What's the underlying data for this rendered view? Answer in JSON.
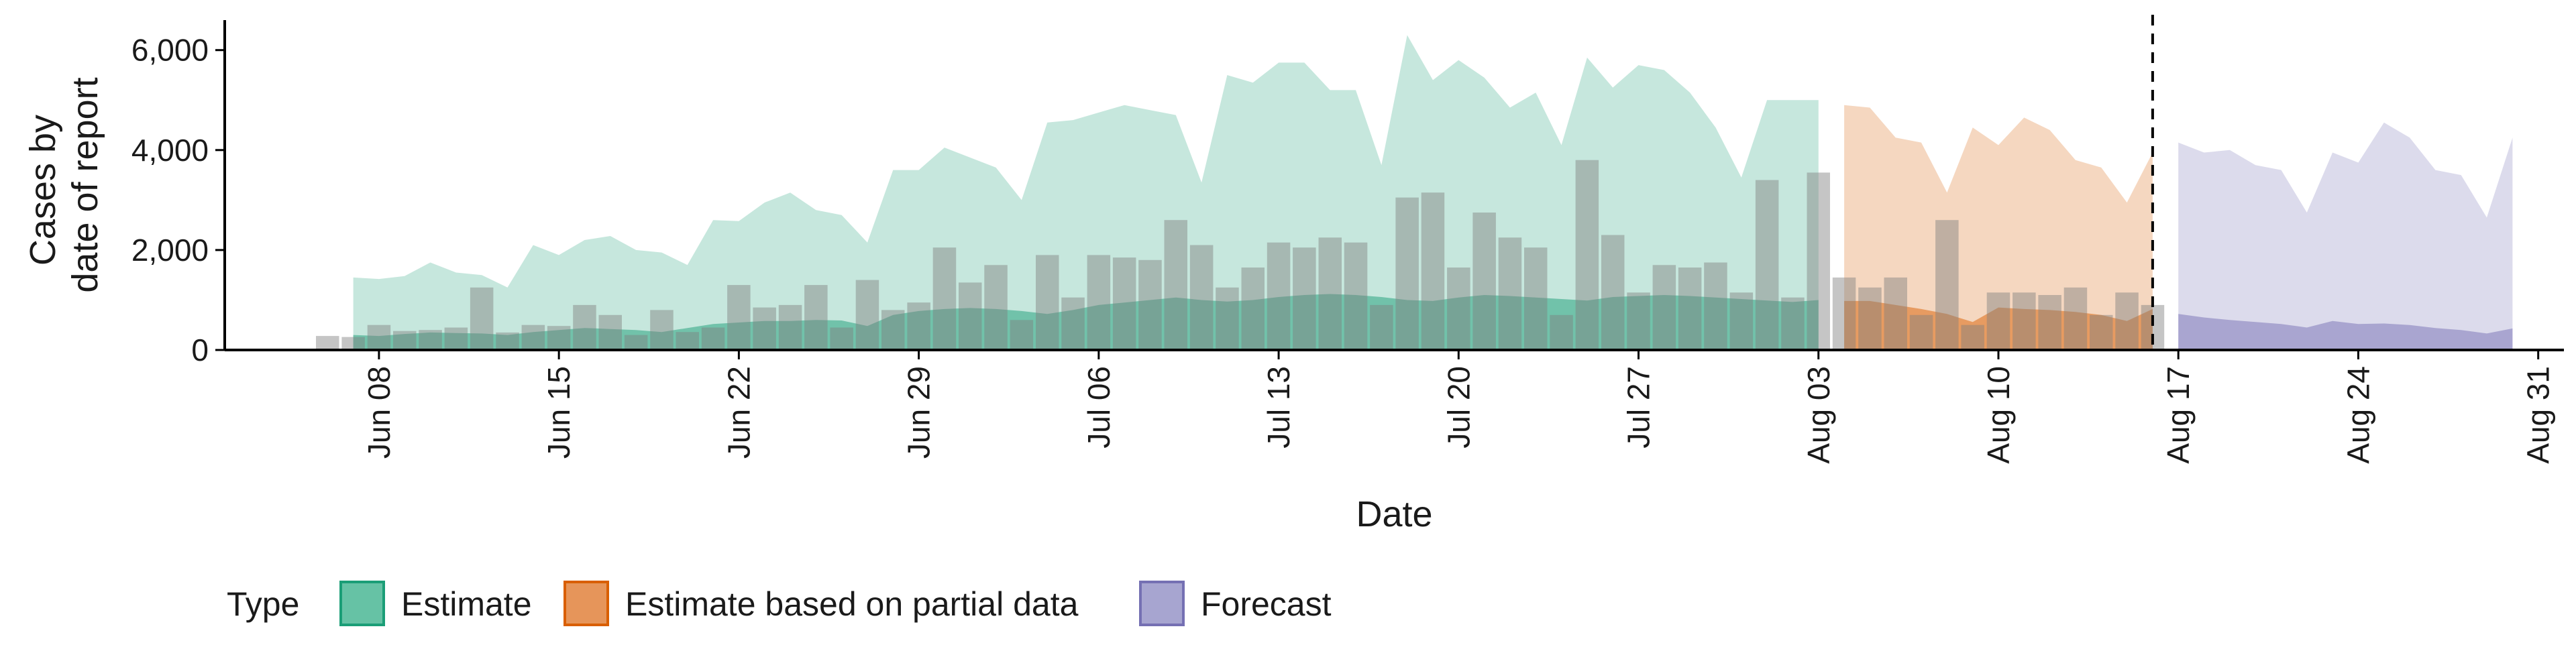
{
  "chart_data": {
    "type": "area",
    "xlabel": "Date",
    "ylabel_lines": [
      "Cases by",
      "date of report"
    ],
    "ylim": [
      0,
      6600
    ],
    "xlim": [
      "2021-06-02",
      "2021-09-01"
    ],
    "y_ticks": [
      0,
      2000,
      4000,
      6000
    ],
    "y_tick_labels": [
      "0",
      "2,000",
      "4,000",
      "6,000"
    ],
    "x_ticks": [
      "2021-06-08",
      "2021-06-15",
      "2021-06-22",
      "2021-06-29",
      "2021-07-06",
      "2021-07-13",
      "2021-07-20",
      "2021-07-27",
      "2021-08-03",
      "2021-08-10",
      "2021-08-17",
      "2021-08-24",
      "2021-08-31"
    ],
    "x_tick_labels": [
      "Jun 08",
      "Jun 15",
      "Jun 22",
      "Jun 29",
      "Jul 06",
      "Jul 13",
      "Jul 20",
      "Jul 27",
      "Aug 03",
      "Aug 10",
      "Aug 17",
      "Aug 24",
      "Aug 31"
    ],
    "vline_date": "2021-08-16",
    "legend": {
      "title": "Type",
      "position": "bottom",
      "entries": [
        {
          "label": "Estimate",
          "fill": "#66c2a5",
          "stroke": "#1b9e77"
        },
        {
          "label": "Estimate based on partial data",
          "fill": "#e6955a",
          "stroke": "#d95f02"
        },
        {
          "label": "Forecast",
          "fill": "#a7a5d0",
          "stroke": "#7570b3"
        }
      ]
    },
    "series": [
      {
        "name": "Estimate",
        "fill": "#1b9e77",
        "x": [
          "2021-06-07",
          "2021-06-08",
          "2021-06-09",
          "2021-06-10",
          "2021-06-11",
          "2021-06-12",
          "2021-06-13",
          "2021-06-14",
          "2021-06-15",
          "2021-06-16",
          "2021-06-17",
          "2021-06-18",
          "2021-06-19",
          "2021-06-20",
          "2021-06-21",
          "2021-06-22",
          "2021-06-23",
          "2021-06-24",
          "2021-06-25",
          "2021-06-26",
          "2021-06-27",
          "2021-06-28",
          "2021-06-29",
          "2021-06-30",
          "2021-07-01",
          "2021-07-02",
          "2021-07-03",
          "2021-07-04",
          "2021-07-05",
          "2021-07-06",
          "2021-07-07",
          "2021-07-08",
          "2021-07-09",
          "2021-07-10",
          "2021-07-11",
          "2021-07-12",
          "2021-07-13",
          "2021-07-14",
          "2021-07-15",
          "2021-07-16",
          "2021-07-17",
          "2021-07-18",
          "2021-07-19",
          "2021-07-20",
          "2021-07-21",
          "2021-07-22",
          "2021-07-23",
          "2021-07-24",
          "2021-07-25",
          "2021-07-26",
          "2021-07-27",
          "2021-07-28",
          "2021-07-29",
          "2021-07-30",
          "2021-07-31",
          "2021-08-01",
          "2021-08-02",
          "2021-08-03"
        ],
        "lower": [
          200,
          190,
          220,
          250,
          240,
          230,
          200,
          260,
          280,
          300,
          290,
          270,
          240,
          300,
          380,
          400,
          420,
          410,
          430,
          420,
          330,
          520,
          580,
          620,
          640,
          620,
          590,
          550,
          600,
          780,
          820,
          860,
          900,
          880,
          840,
          870,
          920,
          940,
          960,
          950,
          920,
          880,
          850,
          920,
          980,
          960,
          930,
          900,
          870,
          940,
          960,
          980,
          960,
          920,
          900,
          880,
          860,
          880
        ],
        "median": [
          300,
          280,
          320,
          350,
          340,
          330,
          300,
          360,
          400,
          440,
          420,
          400,
          360,
          440,
          520,
          550,
          580,
          580,
          600,
          590,
          480,
          700,
          780,
          820,
          840,
          820,
          780,
          720,
          800,
          900,
          950,
          1000,
          1050,
          1000,
          970,
          1000,
          1060,
          1100,
          1120,
          1100,
          1060,
          1000,
          980,
          1050,
          1100,
          1080,
          1050,
          1020,
          990,
          1060,
          1080,
          1100,
          1080,
          1050,
          1020,
          990,
          960,
          1000
        ],
        "upper": [
          1450,
          1420,
          1480,
          1750,
          1550,
          1500,
          1250,
          2100,
          1900,
          2200,
          2280,
          2000,
          1950,
          1700,
          2600,
          2580,
          2950,
          3150,
          2800,
          2700,
          2150,
          3600,
          3600,
          4050,
          3850,
          3650,
          3000,
          4550,
          4600,
          4750,
          4900,
          4800,
          4700,
          3350,
          5500,
          5350,
          5750,
          5750,
          5200,
          5200,
          3700,
          6300,
          5400,
          5800,
          5450,
          4850,
          5150,
          4100,
          5850,
          5250,
          5700,
          5600,
          5150,
          4450,
          3450,
          5000,
          5000,
          5000
        ]
      },
      {
        "name": "Estimate based on partial data",
        "fill": "#d95f02",
        "x": [
          "2021-08-04",
          "2021-08-05",
          "2021-08-06",
          "2021-08-07",
          "2021-08-08",
          "2021-08-09",
          "2021-08-10",
          "2021-08-11",
          "2021-08-12",
          "2021-08-13",
          "2021-08-14",
          "2021-08-15",
          "2021-08-16"
        ],
        "lower": [
          520,
          520,
          500,
          480,
          420,
          400,
          440,
          420,
          410,
          400,
          380,
          350,
          400
        ],
        "median": [
          980,
          980,
          900,
          820,
          720,
          560,
          850,
          820,
          800,
          760,
          700,
          580,
          820
        ],
        "upper": [
          4900,
          4850,
          4250,
          4150,
          3150,
          4450,
          4100,
          4650,
          4400,
          3800,
          3650,
          2950,
          3950
        ]
      },
      {
        "name": "Forecast",
        "fill": "#7570b3",
        "x": [
          "2021-08-17",
          "2021-08-18",
          "2021-08-19",
          "2021-08-20",
          "2021-08-21",
          "2021-08-22",
          "2021-08-23",
          "2021-08-24",
          "2021-08-25",
          "2021-08-26",
          "2021-08-27",
          "2021-08-28",
          "2021-08-29",
          "2021-08-30"
        ],
        "lower": [
          320,
          300,
          280,
          250,
          220,
          200,
          260,
          240,
          240,
          220,
          200,
          180,
          160,
          200
        ],
        "median": [
          720,
          650,
          600,
          560,
          520,
          450,
          580,
          520,
          530,
          500,
          440,
          400,
          330,
          430
        ],
        "upper": [
          4150,
          3950,
          4000,
          3700,
          3600,
          2750,
          3950,
          3750,
          4550,
          4250,
          3600,
          3500,
          2650,
          4250
        ]
      }
    ],
    "reported_cases": {
      "fill": "#7f7f7f",
      "x": [
        "2021-06-06",
        "2021-06-07",
        "2021-06-08",
        "2021-06-09",
        "2021-06-10",
        "2021-06-11",
        "2021-06-12",
        "2021-06-13",
        "2021-06-14",
        "2021-06-15",
        "2021-06-16",
        "2021-06-17",
        "2021-06-18",
        "2021-06-19",
        "2021-06-20",
        "2021-06-21",
        "2021-06-22",
        "2021-06-23",
        "2021-06-24",
        "2021-06-25",
        "2021-06-26",
        "2021-06-27",
        "2021-06-28",
        "2021-06-29",
        "2021-06-30",
        "2021-07-01",
        "2021-07-02",
        "2021-07-03",
        "2021-07-04",
        "2021-07-05",
        "2021-07-06",
        "2021-07-07",
        "2021-07-08",
        "2021-07-09",
        "2021-07-10",
        "2021-07-11",
        "2021-07-12",
        "2021-07-13",
        "2021-07-14",
        "2021-07-15",
        "2021-07-16",
        "2021-07-17",
        "2021-07-18",
        "2021-07-19",
        "2021-07-20",
        "2021-07-21",
        "2021-07-22",
        "2021-07-23",
        "2021-07-24",
        "2021-07-25",
        "2021-07-26",
        "2021-07-27",
        "2021-07-28",
        "2021-07-29",
        "2021-07-30",
        "2021-07-31",
        "2021-08-01",
        "2021-08-02",
        "2021-08-03",
        "2021-08-04",
        "2021-08-05",
        "2021-08-06",
        "2021-08-07",
        "2021-08-08",
        "2021-08-09",
        "2021-08-10",
        "2021-08-11",
        "2021-08-12",
        "2021-08-13",
        "2021-08-14",
        "2021-08-15",
        "2021-08-16"
      ],
      "values": [
        280,
        260,
        500,
        380,
        400,
        450,
        1250,
        350,
        500,
        480,
        900,
        700,
        300,
        800,
        360,
        450,
        1300,
        850,
        900,
        1300,
        450,
        1400,
        800,
        950,
        2050,
        1350,
        1700,
        600,
        1900,
        1050,
        1900,
        1850,
        1800,
        2600,
        2100,
        1250,
        1650,
        2150,
        2050,
        2250,
        2150,
        900,
        3050,
        3150,
        1650,
        2750,
        2250,
        2050,
        700,
        3800,
        2300,
        1150,
        1700,
        1650,
        1750,
        1150,
        3400,
        1050,
        3550,
        1450,
        1250,
        1450,
        700,
        2600,
        500,
        1150,
        1150,
        1100,
        1250,
        700,
        1150,
        900
      ]
    }
  }
}
